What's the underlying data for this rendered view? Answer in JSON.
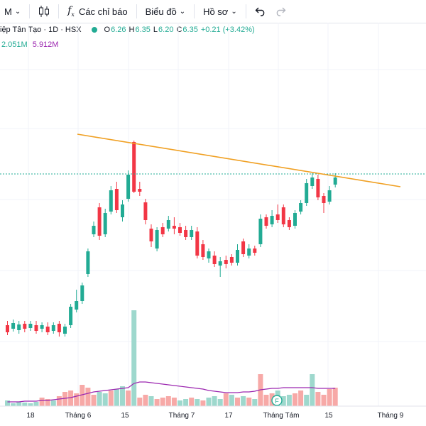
{
  "toolbar": {
    "interval_partial": "M",
    "indicators_label": "Các chỉ báo",
    "charts_label": "Biểu đồ",
    "profile_label": "Hồ sơ"
  },
  "legend": {
    "symbol": "iệp Tân Tạo · 1D · HSX",
    "open_label": "O",
    "open": "6.26",
    "high_label": "H",
    "high": "6.35",
    "low_label": "L",
    "low": "6.20",
    "close_label": "C",
    "close": "6.35",
    "change": "+0.21 (+3.42%)"
  },
  "volume": {
    "value": "2.051M",
    "ma": "5.912M"
  },
  "colors": {
    "up": "#22ab94",
    "down": "#f23645",
    "trendline": "#f0a023",
    "volume_ma": "#9c27b0",
    "grid": "#f0f3fa"
  },
  "icons": [
    "candles-icon",
    "fx-icon",
    "chevron-down-icon",
    "undo-icon",
    "redo-icon",
    "earnings-flag-icon"
  ],
  "x_labels": [
    "18",
    "Tháng 6",
    "15",
    "Tháng 7",
    "17",
    "Tháng Tám",
    "15",
    "Tháng 9"
  ],
  "marker": "F"
}
